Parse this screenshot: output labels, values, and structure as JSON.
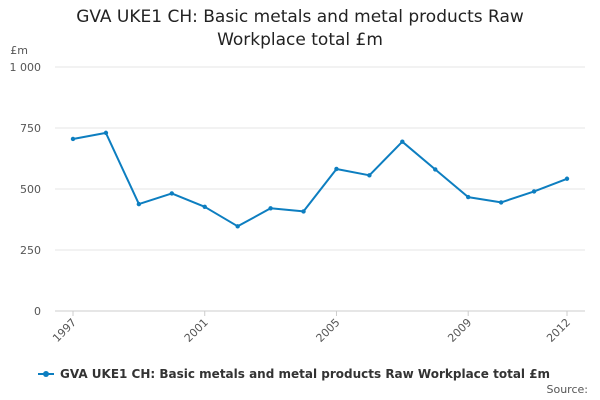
{
  "chart_data": {
    "type": "line",
    "title_lines": [
      "GVA UKE1 CH: Basic metals and metal products Raw",
      "Workplace total £m"
    ],
    "ylabel": "£m",
    "xlabel": "",
    "ylim": [
      0,
      1000
    ],
    "yticks": [
      0,
      250,
      500,
      750,
      1000
    ],
    "ytick_labels": [
      "0",
      "250",
      "500",
      "750",
      "1 000"
    ],
    "xlim": [
      1997,
      2012
    ],
    "xticks": [
      1997,
      2001,
      2005,
      2009,
      2012
    ],
    "xtick_labels": [
      "1997",
      "2001",
      "2005",
      "2009",
      "2012"
    ],
    "grid": true,
    "legend_position": "bottom-left",
    "series": [
      {
        "name": "GVA UKE1 CH: Basic metals and metal products Raw Workplace total £m",
        "color": "#0d7ec0",
        "x": [
          1997,
          1998,
          1999,
          2000,
          2001,
          2002,
          2003,
          2004,
          2005,
          2006,
          2007,
          2008,
          2009,
          2010,
          2011,
          2012
        ],
        "values": [
          705,
          730,
          438,
          482,
          427,
          347,
          421,
          408,
          582,
          556,
          694,
          580,
          467,
          445,
          490,
          542
        ]
      }
    ],
    "source_label": "Source:"
  }
}
